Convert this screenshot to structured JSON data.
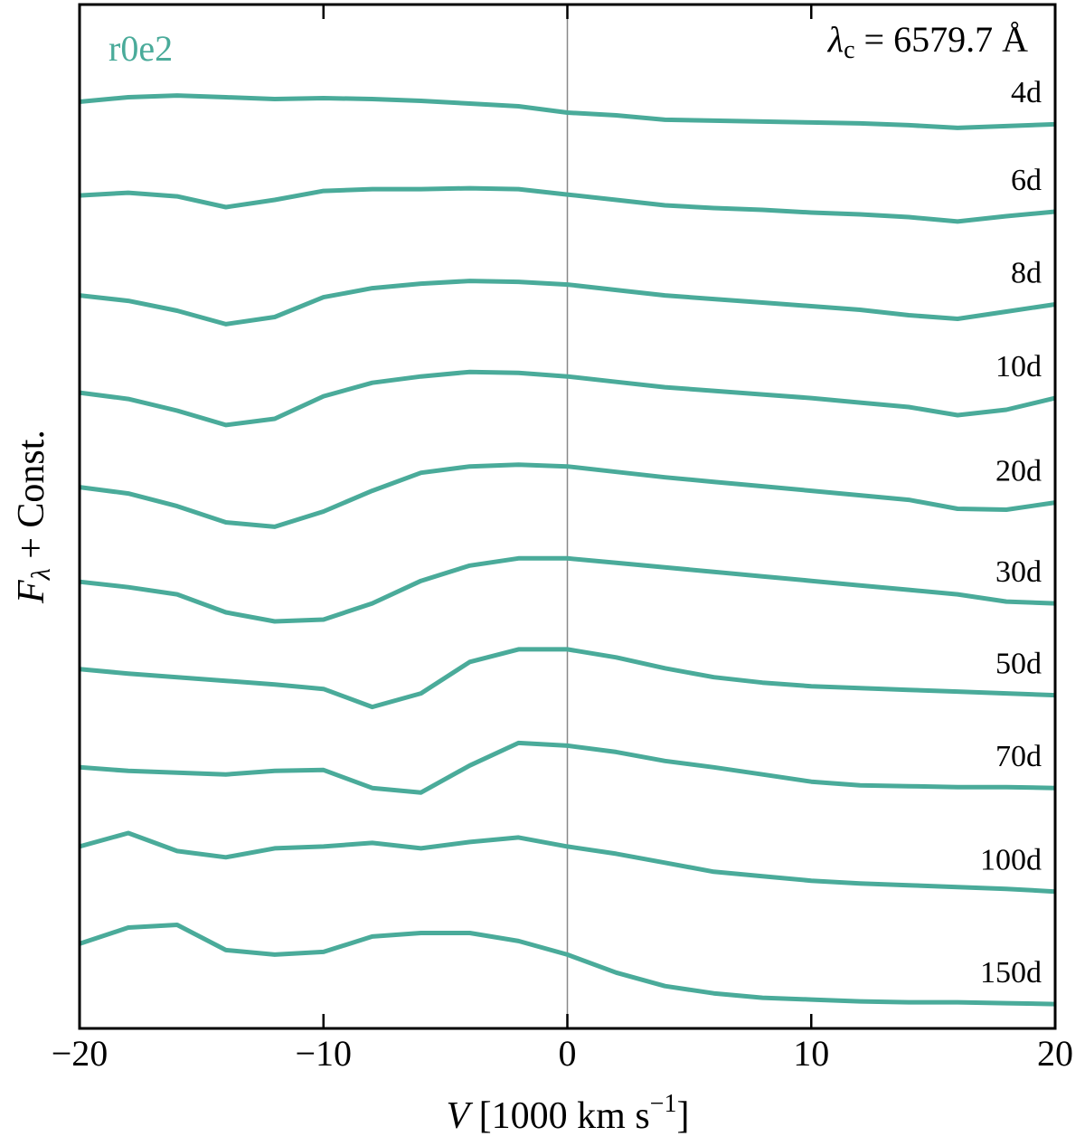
{
  "chart_data": {
    "type": "line",
    "annotations": {
      "model": "r0e2",
      "lambda_symbol": "λ",
      "lambda_sub": "c",
      "lambda_rest": " = 6579.7 Å"
    },
    "y_label": {
      "main": "F",
      "sub": "λ",
      "rest": " + Const."
    },
    "x_label": {
      "main": "V",
      "rest": " [1000 km s",
      "sup": "−1",
      "end": "]"
    },
    "x": [
      -20,
      -18,
      -16,
      -14,
      -12,
      -10,
      -8,
      -6,
      -4,
      -2,
      0,
      2,
      4,
      6,
      8,
      10,
      12,
      14,
      16,
      18,
      20
    ],
    "xlim": [
      -20,
      20
    ],
    "xticks": [
      {
        "value": -20,
        "label": "−20"
      },
      {
        "value": -10,
        "label": "−10"
      },
      0,
      10,
      20
    ],
    "ylim": [
      -0.05,
      11.32
    ],
    "vline": 0,
    "color": "#4aab9a",
    "series": [
      {
        "name": "4d",
        "color": "#4aab9a",
        "values": [
          10.24,
          10.29,
          10.31,
          10.29,
          10.27,
          10.28,
          10.27,
          10.25,
          10.22,
          10.19,
          10.12,
          10.09,
          10.04,
          10.03,
          10.02,
          10.01,
          10.0,
          9.98,
          9.95,
          9.97,
          9.99
        ]
      },
      {
        "name": "6d",
        "color": "#4aab9a",
        "values": [
          9.2,
          9.23,
          9.19,
          9.07,
          9.15,
          9.25,
          9.27,
          9.27,
          9.28,
          9.27,
          9.21,
          9.15,
          9.09,
          9.06,
          9.04,
          9.01,
          8.99,
          8.96,
          8.91,
          8.97,
          9.02
        ]
      },
      {
        "name": "8d",
        "color": "#4aab9a",
        "values": [
          8.09,
          8.03,
          7.92,
          7.77,
          7.85,
          8.07,
          8.17,
          8.22,
          8.25,
          8.24,
          8.21,
          8.15,
          8.09,
          8.05,
          8.01,
          7.97,
          7.93,
          7.87,
          7.83,
          7.91,
          7.99
        ]
      },
      {
        "name": "10d",
        "color": "#4aab9a",
        "values": [
          7.01,
          6.94,
          6.81,
          6.65,
          6.72,
          6.97,
          7.12,
          7.19,
          7.24,
          7.23,
          7.19,
          7.13,
          7.07,
          7.03,
          6.99,
          6.95,
          6.9,
          6.85,
          6.76,
          6.82,
          6.95
        ]
      },
      {
        "name": "20d",
        "color": "#4aab9a",
        "values": [
          5.96,
          5.89,
          5.75,
          5.57,
          5.52,
          5.69,
          5.92,
          6.12,
          6.19,
          6.21,
          6.19,
          6.13,
          6.07,
          6.02,
          5.97,
          5.92,
          5.87,
          5.82,
          5.72,
          5.71,
          5.79
        ]
      },
      {
        "name": "30d",
        "color": "#4aab9a",
        "values": [
          4.91,
          4.85,
          4.77,
          4.57,
          4.47,
          4.49,
          4.67,
          4.92,
          5.09,
          5.17,
          5.17,
          5.12,
          5.07,
          5.02,
          4.97,
          4.92,
          4.87,
          4.82,
          4.77,
          4.69,
          4.67
        ]
      },
      {
        "name": "50d",
        "color": "#4aab9a",
        "values": [
          3.94,
          3.89,
          3.85,
          3.81,
          3.77,
          3.72,
          3.52,
          3.67,
          4.02,
          4.16,
          4.16,
          4.07,
          3.95,
          3.85,
          3.79,
          3.75,
          3.73,
          3.71,
          3.69,
          3.67,
          3.65
        ]
      },
      {
        "name": "70d",
        "color": "#4aab9a",
        "values": [
          2.85,
          2.81,
          2.79,
          2.77,
          2.81,
          2.82,
          2.62,
          2.57,
          2.87,
          3.12,
          3.09,
          3.02,
          2.92,
          2.85,
          2.77,
          2.69,
          2.65,
          2.64,
          2.63,
          2.63,
          2.62
        ]
      },
      {
        "name": "100d",
        "color": "#4aab9a",
        "values": [
          1.97,
          2.12,
          1.92,
          1.85,
          1.95,
          1.97,
          2.01,
          1.95,
          2.02,
          2.07,
          1.97,
          1.89,
          1.79,
          1.69,
          1.64,
          1.59,
          1.56,
          1.54,
          1.52,
          1.5,
          1.47
        ]
      },
      {
        "name": "150d",
        "color": "#4aab9a",
        "values": [
          0.89,
          1.07,
          1.1,
          0.82,
          0.77,
          0.8,
          0.97,
          1.01,
          1.01,
          0.92,
          0.77,
          0.57,
          0.42,
          0.34,
          0.29,
          0.27,
          0.25,
          0.24,
          0.24,
          0.23,
          0.22
        ]
      }
    ]
  }
}
